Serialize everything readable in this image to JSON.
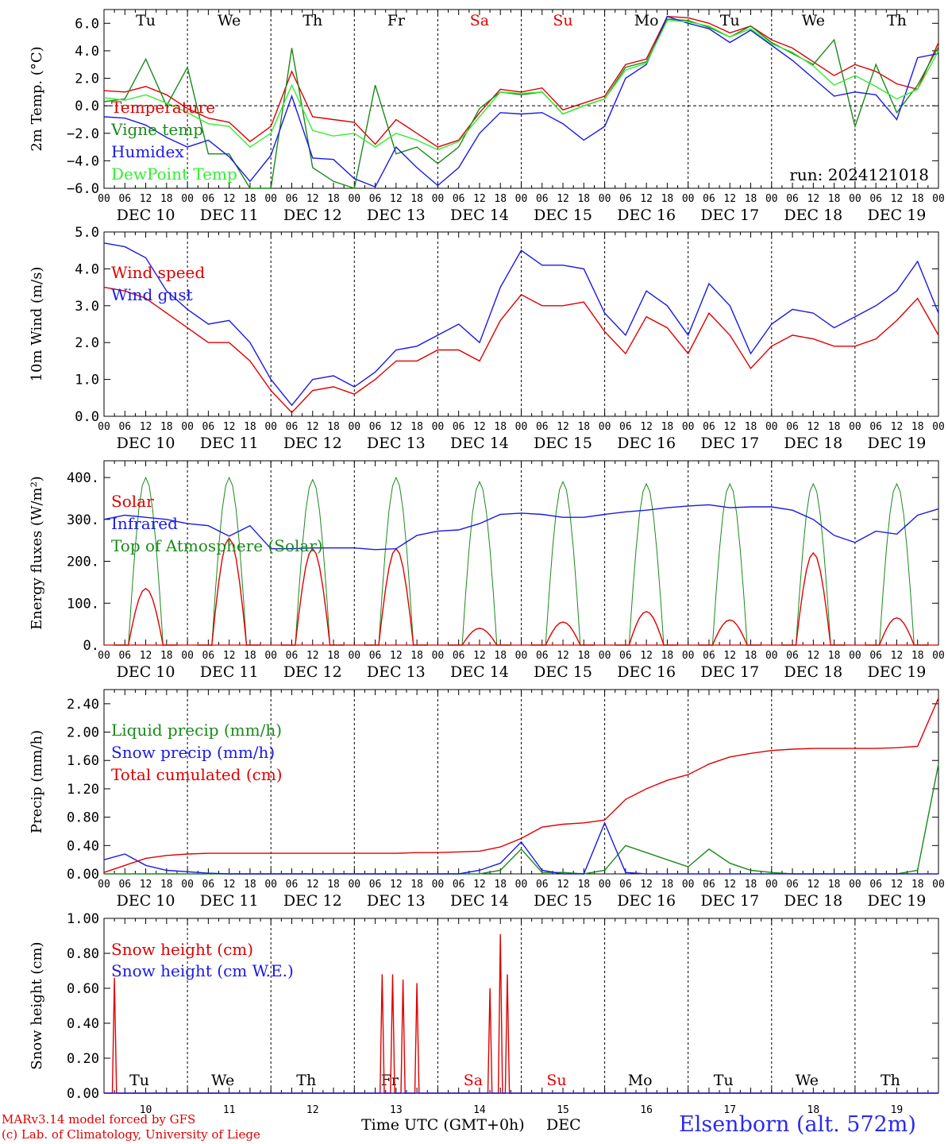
{
  "station": "Elsenborn (alt. 572m)",
  "footer": {
    "line1": "MARv3.14 model forced by GFS",
    "line2": "(c) Lab. of Climatology, University of Liege"
  },
  "x_axis_title": "Time UTC (GMT+0h)",
  "x_axis_month": "DEC",
  "colors": {
    "red": "#e00000",
    "darkgreen": "#1a8a1a",
    "blue": "#1a1ae6",
    "lightgreen": "#33ee33",
    "axis": "#000000"
  },
  "days": [
    "DEC 10",
    "DEC 11",
    "DEC 12",
    "DEC 13",
    "DEC 14",
    "DEC 15",
    "DEC 16",
    "DEC 17",
    "DEC 18",
    "DEC 19"
  ],
  "day_numbers": [
    "10",
    "11",
    "12",
    "13",
    "14",
    "15",
    "16",
    "17",
    "18",
    "19"
  ],
  "weekdays": [
    "Tu",
    "We",
    "Th",
    "Fr",
    "Sa",
    "Su",
    "Mo",
    "Tu",
    "We",
    "Th"
  ],
  "weekend_flags": [
    false,
    false,
    false,
    false,
    true,
    true,
    false,
    false,
    false,
    false
  ],
  "hour_ticks": [
    "00",
    "06",
    "12",
    "18"
  ],
  "chart_data": [
    {
      "type": "line",
      "id": "temp",
      "ylabel": "2m Temp. (°C)",
      "ylim": [
        -6,
        7
      ],
      "yticks": [
        -6,
        -4,
        -2,
        0,
        2,
        4,
        6
      ],
      "ytick_labels": [
        "−6.0",
        "−4.0",
        "−2.0",
        "0.0",
        "2.0",
        "4.0",
        "6.0"
      ],
      "zero_line": true,
      "annotation": "run: 2024121018",
      "x_hours": [
        0,
        6,
        12,
        18,
        24,
        30,
        36,
        42,
        48,
        54,
        60,
        66,
        72,
        78,
        84,
        90,
        96,
        102,
        108,
        114,
        120,
        126,
        132,
        138,
        144,
        150,
        156,
        162,
        168,
        174,
        180,
        186,
        192,
        198,
        204,
        210,
        216,
        222,
        228,
        234,
        240
      ],
      "series": [
        {
          "name": "Temperature",
          "color": "red",
          "values": [
            1.1,
            1.0,
            1.4,
            0.8,
            -0.2,
            -0.9,
            -1.2,
            -2.6,
            -1.5,
            2.5,
            -0.8,
            -1.0,
            -1.2,
            -2.8,
            -1.0,
            -2.0,
            -3.0,
            -2.5,
            -0.5,
            1.2,
            1.0,
            1.3,
            -0.3,
            0.2,
            0.7,
            3.0,
            3.4,
            6.5,
            6.4,
            6.0,
            5.3,
            5.8,
            4.8,
            4.2,
            3.2,
            2.2,
            3.0,
            2.5,
            1.6,
            1.2,
            4.6
          ]
        },
        {
          "name": "Vigne temp",
          "color": "darkgreen",
          "values": [
            0.3,
            0.5,
            3.4,
            0.0,
            2.8,
            -3.5,
            -3.5,
            -6.0,
            -6.0,
            4.2,
            -4.5,
            -5.5,
            -6.0,
            1.5,
            -3.5,
            -3.0,
            -4.2,
            -3.0,
            -0.2,
            1.0,
            0.8,
            1.0,
            -0.6,
            0.0,
            0.5,
            2.8,
            3.2,
            6.3,
            6.2,
            5.7,
            5.0,
            5.8,
            4.6,
            3.8,
            3.0,
            4.8,
            -1.5,
            3.0,
            -0.5,
            1.5,
            4.3
          ]
        },
        {
          "name": "Humidex",
          "color": "blue",
          "values": [
            -0.8,
            -0.9,
            -1.4,
            -2.3,
            -3.0,
            -2.5,
            -3.7,
            -5.5,
            -3.6,
            0.7,
            -3.8,
            -3.9,
            -5.3,
            -5.9,
            -3.0,
            -4.5,
            -5.8,
            -4.5,
            -2.0,
            -0.5,
            -0.6,
            -0.5,
            -1.3,
            -2.5,
            -1.5,
            2.0,
            3.0,
            6.5,
            6.0,
            5.6,
            4.6,
            5.5,
            4.4,
            3.3,
            2.0,
            0.7,
            1.0,
            0.8,
            -1.0,
            3.5,
            3.8
          ]
        },
        {
          "name": "DewPoint Temp",
          "color": "lightgreen",
          "values": [
            0.6,
            0.4,
            0.8,
            0.2,
            -0.5,
            -1.3,
            -1.5,
            -3.0,
            -2.0,
            1.5,
            -1.8,
            -2.2,
            -2.0,
            -3.0,
            -2.0,
            -2.5,
            -3.2,
            -2.6,
            -0.8,
            1.0,
            0.9,
            1.0,
            -0.6,
            0.0,
            0.5,
            2.6,
            3.1,
            6.2,
            6.1,
            5.8,
            5.0,
            5.6,
            4.5,
            3.9,
            2.9,
            1.5,
            2.2,
            1.4,
            0.5,
            1.2,
            4.0
          ]
        }
      ]
    },
    {
      "type": "line",
      "id": "wind",
      "ylabel": "10m Wind (m/s)",
      "ylim": [
        0,
        5
      ],
      "yticks": [
        0,
        1,
        2,
        3,
        4,
        5
      ],
      "ytick_labels": [
        "0.0",
        "1.0",
        "2.0",
        "3.0",
        "4.0",
        "5.0"
      ],
      "x_hours": [
        0,
        6,
        12,
        18,
        24,
        30,
        36,
        42,
        48,
        54,
        60,
        66,
        72,
        78,
        84,
        90,
        96,
        102,
        108,
        114,
        120,
        126,
        132,
        138,
        144,
        150,
        156,
        162,
        168,
        174,
        180,
        186,
        192,
        198,
        204,
        210,
        216,
        222,
        228,
        234,
        240
      ],
      "series": [
        {
          "name": "Wind speed",
          "color": "red",
          "values": [
            3.5,
            3.4,
            3.2,
            2.8,
            2.4,
            2.0,
            2.0,
            1.5,
            0.7,
            0.1,
            0.7,
            0.8,
            0.6,
            1.0,
            1.5,
            1.5,
            1.8,
            1.8,
            1.5,
            2.6,
            3.3,
            3.0,
            3.0,
            3.1,
            2.3,
            1.7,
            2.7,
            2.4,
            1.7,
            2.8,
            2.2,
            1.3,
            1.9,
            2.2,
            2.1,
            1.9,
            1.9,
            2.1,
            2.6,
            3.2,
            2.2
          ]
        },
        {
          "name": "Wind gust",
          "color": "blue",
          "values": [
            4.7,
            4.6,
            4.3,
            3.4,
            2.9,
            2.5,
            2.6,
            2.0,
            1.0,
            0.3,
            1.0,
            1.1,
            0.8,
            1.2,
            1.8,
            1.9,
            2.2,
            2.5,
            2.0,
            3.5,
            4.5,
            4.1,
            4.1,
            4.0,
            2.8,
            2.2,
            3.4,
            3.0,
            2.2,
            3.6,
            3.0,
            1.7,
            2.5,
            2.9,
            2.8,
            2.4,
            2.7,
            3.0,
            3.4,
            4.2,
            2.8
          ]
        }
      ]
    },
    {
      "type": "line",
      "id": "energy",
      "ylabel": "Energy fluxes (W/m²)",
      "ylim": [
        0,
        440
      ],
      "yticks": [
        0,
        100,
        200,
        300,
        400
      ],
      "ytick_labels": [
        "0.",
        "100.",
        "200.",
        "300.",
        "400."
      ],
      "solar_peaks": [
        135,
        255,
        230,
        230,
        40,
        55,
        80,
        60,
        220,
        65
      ],
      "toa_peaks": [
        400,
        400,
        395,
        400,
        390,
        390,
        385,
        385,
        385,
        385
      ],
      "x_hours": [
        0,
        6,
        12,
        18,
        24,
        30,
        36,
        42,
        48,
        54,
        60,
        66,
        72,
        78,
        84,
        90,
        96,
        102,
        108,
        114,
        120,
        126,
        132,
        138,
        144,
        150,
        156,
        162,
        168,
        174,
        180,
        186,
        192,
        198,
        204,
        210,
        216,
        222,
        228,
        234,
        240
      ],
      "series": [
        {
          "name": "Solar",
          "color": "red"
        },
        {
          "name": "Infrared",
          "color": "blue",
          "values": [
            300,
            310,
            305,
            300,
            290,
            285,
            260,
            285,
            230,
            230,
            232,
            232,
            232,
            228,
            230,
            262,
            272,
            275,
            290,
            312,
            315,
            312,
            305,
            305,
            312,
            318,
            322,
            328,
            332,
            335,
            328,
            330,
            330,
            322,
            300,
            262,
            245,
            272,
            265,
            310,
            325
          ]
        },
        {
          "name": "Top of Atmosphere (Solar)",
          "color": "darkgreen"
        }
      ]
    },
    {
      "type": "line",
      "id": "precip",
      "ylabel": "Precip (mm/h)",
      "ylim": [
        0,
        2.6
      ],
      "yticks": [
        0,
        0.4,
        0.8,
        1.2,
        1.6,
        2.0,
        2.4
      ],
      "ytick_labels": [
        "0.00",
        "0.40",
        "0.80",
        "1.20",
        "1.60",
        "2.00",
        "2.40"
      ],
      "x_hours": [
        0,
        6,
        12,
        18,
        24,
        30,
        36,
        42,
        48,
        54,
        60,
        66,
        72,
        78,
        84,
        90,
        96,
        102,
        108,
        114,
        120,
        126,
        132,
        138,
        144,
        150,
        156,
        162,
        168,
        174,
        180,
        186,
        192,
        198,
        204,
        210,
        216,
        222,
        228,
        234,
        240
      ],
      "series": [
        {
          "name": "Liquid precip (mm/h)",
          "color": "darkgreen",
          "values": [
            0,
            0,
            0,
            0,
            0,
            0,
            0,
            0,
            0,
            0,
            0,
            0,
            0,
            0,
            0,
            0,
            0,
            0,
            0,
            0.05,
            0.35,
            0.02,
            0.02,
            0,
            0.05,
            0.4,
            0.3,
            0.2,
            0.1,
            0.35,
            0.15,
            0.05,
            0.02,
            0,
            0,
            0,
            0,
            0,
            0,
            0.05,
            1.55
          ]
        },
        {
          "name": "Snow precip (mm/h)",
          "color": "blue",
          "values": [
            0.2,
            0.28,
            0.12,
            0.05,
            0.03,
            0.01,
            0,
            0,
            0,
            0,
            0,
            0,
            0,
            0,
            0,
            0,
            0,
            0,
            0.05,
            0.15,
            0.45,
            0.05,
            0,
            0,
            0.72,
            0.02,
            0,
            0,
            0,
            0,
            0,
            0,
            0,
            0,
            0,
            0,
            0,
            0,
            0,
            0,
            0
          ]
        },
        {
          "name": "Total cumulated (cm)",
          "color": "red",
          "values": [
            0.02,
            0.12,
            0.22,
            0.26,
            0.28,
            0.29,
            0.29,
            0.29,
            0.29,
            0.29,
            0.29,
            0.29,
            0.29,
            0.29,
            0.29,
            0.3,
            0.3,
            0.31,
            0.32,
            0.38,
            0.5,
            0.66,
            0.7,
            0.72,
            0.76,
            1.05,
            1.2,
            1.32,
            1.4,
            1.55,
            1.65,
            1.7,
            1.74,
            1.76,
            1.77,
            1.77,
            1.77,
            1.77,
            1.78,
            1.8,
            2.48
          ]
        }
      ]
    },
    {
      "type": "line",
      "id": "snow",
      "ylabel": "Snow height (cm)",
      "ylim": [
        0,
        1
      ],
      "yticks": [
        0,
        0.2,
        0.4,
        0.6,
        0.8,
        1.0
      ],
      "ytick_labels": [
        "0.00",
        "0.20",
        "0.40",
        "0.60",
        "0.80",
        "1.00"
      ],
      "series": [
        {
          "name": "Snow height (cm)",
          "color": "red",
          "spikes": [
            [
              3,
              0.66
            ],
            [
              80,
              0.68
            ],
            [
              83,
              0.68
            ],
            [
              86,
              0.65
            ],
            [
              90,
              0.63
            ],
            [
              111,
              0.6
            ],
            [
              114,
              0.91
            ],
            [
              116,
              0.68
            ]
          ]
        },
        {
          "name": "Snow height (cm W.E.)",
          "color": "blue",
          "spikes": []
        }
      ]
    }
  ]
}
